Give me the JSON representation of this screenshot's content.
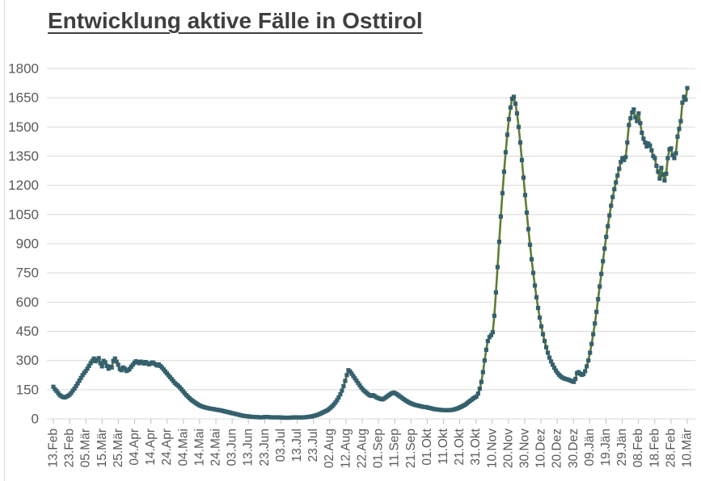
{
  "chart_data": {
    "type": "line",
    "title": "Entwicklung aktive Fälle in Osttirol",
    "xlabel": "",
    "ylabel": "",
    "ylim": [
      0,
      1800
    ],
    "y_ticks": [
      0,
      150,
      300,
      450,
      600,
      750,
      900,
      1050,
      1200,
      1350,
      1500,
      1650,
      1800
    ],
    "grid": true,
    "legend_position": "none",
    "marker_shape": "square",
    "x_tick_labels": [
      "13.Feb",
      "23.Feb",
      "05.Mär",
      "15.Mär",
      "25.Mär",
      "04.Apr",
      "14.Apr",
      "24.Apr",
      "04.Mai",
      "14.Mai",
      "24.Mai",
      "03.Jun",
      "13.Jun",
      "23.Jun",
      "03.Jul",
      "13.Jul",
      "23.Jul",
      "02.Aug",
      "12.Aug",
      "22.Aug",
      "01.Sep",
      "11.Sep",
      "21.Sep",
      "01.Okt",
      "11.Okt",
      "21.Okt",
      "31.Okt",
      "10.Nov",
      "20.Nov",
      "30.Nov",
      "10.Dez",
      "20.Dez",
      "30.Dez",
      "09.Jän",
      "19.Jän",
      "29.Jän",
      "08.Feb",
      "18.Feb",
      "28.Feb",
      "10.Mär"
    ],
    "values": [
      165,
      152,
      143,
      132,
      122,
      116,
      112,
      110,
      114,
      118,
      124,
      133,
      145,
      155,
      168,
      182,
      196,
      210,
      224,
      236,
      246,
      258,
      272,
      286,
      298,
      310,
      296,
      302,
      312,
      286,
      270,
      298,
      290,
      272,
      258,
      268,
      264,
      298,
      310,
      294,
      278,
      256,
      250,
      264,
      258,
      246,
      250,
      256,
      268,
      278,
      288,
      296,
      292,
      286,
      294,
      290,
      284,
      292,
      286,
      280,
      284,
      290,
      286,
      280,
      274,
      280,
      272,
      264,
      254,
      244,
      234,
      224,
      214,
      204,
      194,
      184,
      176,
      170,
      162,
      152,
      142,
      132,
      122,
      114,
      106,
      98,
      92,
      86,
      80,
      75,
      70,
      66,
      63,
      60,
      58,
      56,
      54,
      52,
      51,
      50,
      48,
      47,
      45,
      44,
      42,
      40,
      38,
      36,
      34,
      32,
      30,
      28,
      26,
      24,
      22,
      20,
      18,
      16,
      15,
      14,
      13,
      12,
      11,
      10,
      10,
      9,
      9,
      8,
      8,
      8,
      9,
      10,
      10,
      9,
      8,
      8,
      8,
      8,
      8,
      8,
      7,
      7,
      6,
      6,
      6,
      6,
      6,
      7,
      7,
      8,
      8,
      8,
      7,
      7,
      8,
      8,
      9,
      10,
      11,
      12,
      14,
      16,
      18,
      21,
      24,
      28,
      32,
      36,
      40,
      44,
      50,
      57,
      65,
      74,
      84,
      96,
      110,
      126,
      145,
      168,
      195,
      225,
      250,
      243,
      232,
      220,
      208,
      196,
      184,
      172,
      160,
      150,
      142,
      135,
      128,
      122,
      118,
      122,
      118,
      112,
      108,
      105,
      102,
      100,
      104,
      110,
      116,
      122,
      128,
      132,
      135,
      131,
      126,
      120,
      114,
      108,
      102,
      96,
      91,
      86,
      82,
      78,
      75,
      72,
      70,
      68,
      66,
      64,
      62,
      61,
      60,
      58,
      56,
      54,
      52,
      50,
      49,
      48,
      47,
      46,
      45,
      45,
      44,
      44,
      45,
      45,
      46,
      48,
      50,
      53,
      56,
      60,
      64,
      68,
      73,
      79,
      86,
      92,
      98,
      105,
      110,
      115,
      130,
      155,
      190,
      240,
      300,
      355,
      400,
      420,
      430,
      445,
      530,
      650,
      780,
      910,
      1040,
      1160,
      1270,
      1370,
      1460,
      1540,
      1600,
      1645,
      1655,
      1620,
      1570,
      1500,
      1420,
      1330,
      1240,
      1150,
      1060,
      975,
      895,
      820,
      750,
      685,
      625,
      570,
      520,
      475,
      435,
      400,
      368,
      340,
      315,
      295,
      278,
      262,
      248,
      236,
      226,
      218,
      212,
      208,
      205,
      203,
      200,
      197,
      193,
      190,
      205,
      235,
      240,
      232,
      226,
      230,
      245,
      270,
      300,
      340,
      385,
      435,
      490,
      550,
      615,
      680,
      745,
      810,
      875,
      935,
      990,
      1045,
      1095,
      1140,
      1180,
      1215,
      1250,
      1285,
      1320,
      1340,
      1330,
      1345,
      1420,
      1510,
      1545,
      1575,
      1590,
      1550,
      1530,
      1570,
      1520,
      1470,
      1440,
      1420,
      1400,
      1415,
      1405,
      1380,
      1350,
      1340,
      1300,
      1270,
      1235,
      1290,
      1255,
      1225,
      1260,
      1340,
      1385,
      1390,
      1355,
      1340,
      1365,
      1450,
      1490,
      1530,
      1625,
      1655,
      1640,
      1700
    ],
    "colors": {
      "line": "#5f7d33",
      "marker": "#35606d",
      "gridline": "#d9d9d9",
      "tick_mark": "#bfbfbf",
      "axis_label": "#595959",
      "title": "#3f3f3f"
    }
  }
}
